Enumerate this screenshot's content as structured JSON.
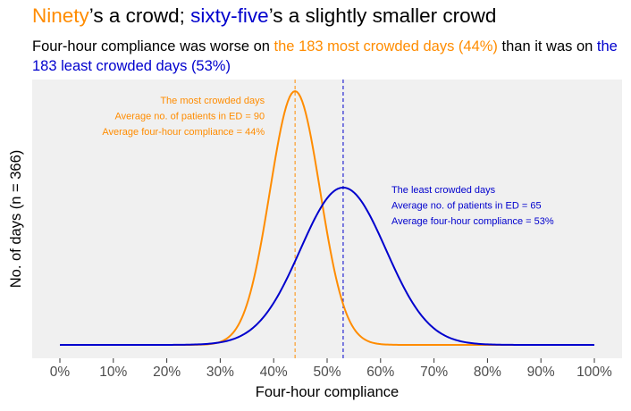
{
  "title": {
    "part1": "Ninety",
    "part2": "’s a crowd; ",
    "part3": "sixty-five",
    "part4": "’s a slightly smaller crowd"
  },
  "subtitle": {
    "part1": "Four-hour compliance was worse on ",
    "part2": "the 183 most crowded days (44%)",
    "part3": " than it was on ",
    "part4": "the 183 least crowded days (53%)"
  },
  "colors": {
    "most": "#ff8c00",
    "least": "#0000cd",
    "panel": "#f0f0f0"
  },
  "chart_data": {
    "type": "line",
    "title": "Ninety’s a crowd; sixty-five’s a slightly smaller crowd",
    "xlabel": "Four-hour compliance",
    "ylabel": "No. of days (n = 366)",
    "xlim": [
      0,
      1
    ],
    "xticks": [
      0,
      0.1,
      0.2,
      0.3,
      0.4,
      0.5,
      0.6,
      0.7,
      0.8,
      0.9,
      1.0
    ],
    "xtick_labels": [
      "0%",
      "10%",
      "20%",
      "30%",
      "40%",
      "50%",
      "60%",
      "70%",
      "80%",
      "90%",
      "100%"
    ],
    "grid": false,
    "series": [
      {
        "name": "The most crowded days",
        "color": "#ff8c00",
        "mean": 0.44,
        "sd": 0.047,
        "peak": 1.0,
        "n": 183,
        "annotation": [
          "The most crowded days",
          "Average no. of patients in ED = 90",
          "Average four-hour compliance = 44%"
        ]
      },
      {
        "name": "The least crowded days",
        "color": "#0000cd",
        "mean": 0.53,
        "sd": 0.08,
        "peak": 0.62,
        "n": 183,
        "annotation": [
          "The least crowded days",
          "Average no. of patients in ED = 65",
          "Average four-hour compliance = 53%"
        ]
      }
    ]
  }
}
